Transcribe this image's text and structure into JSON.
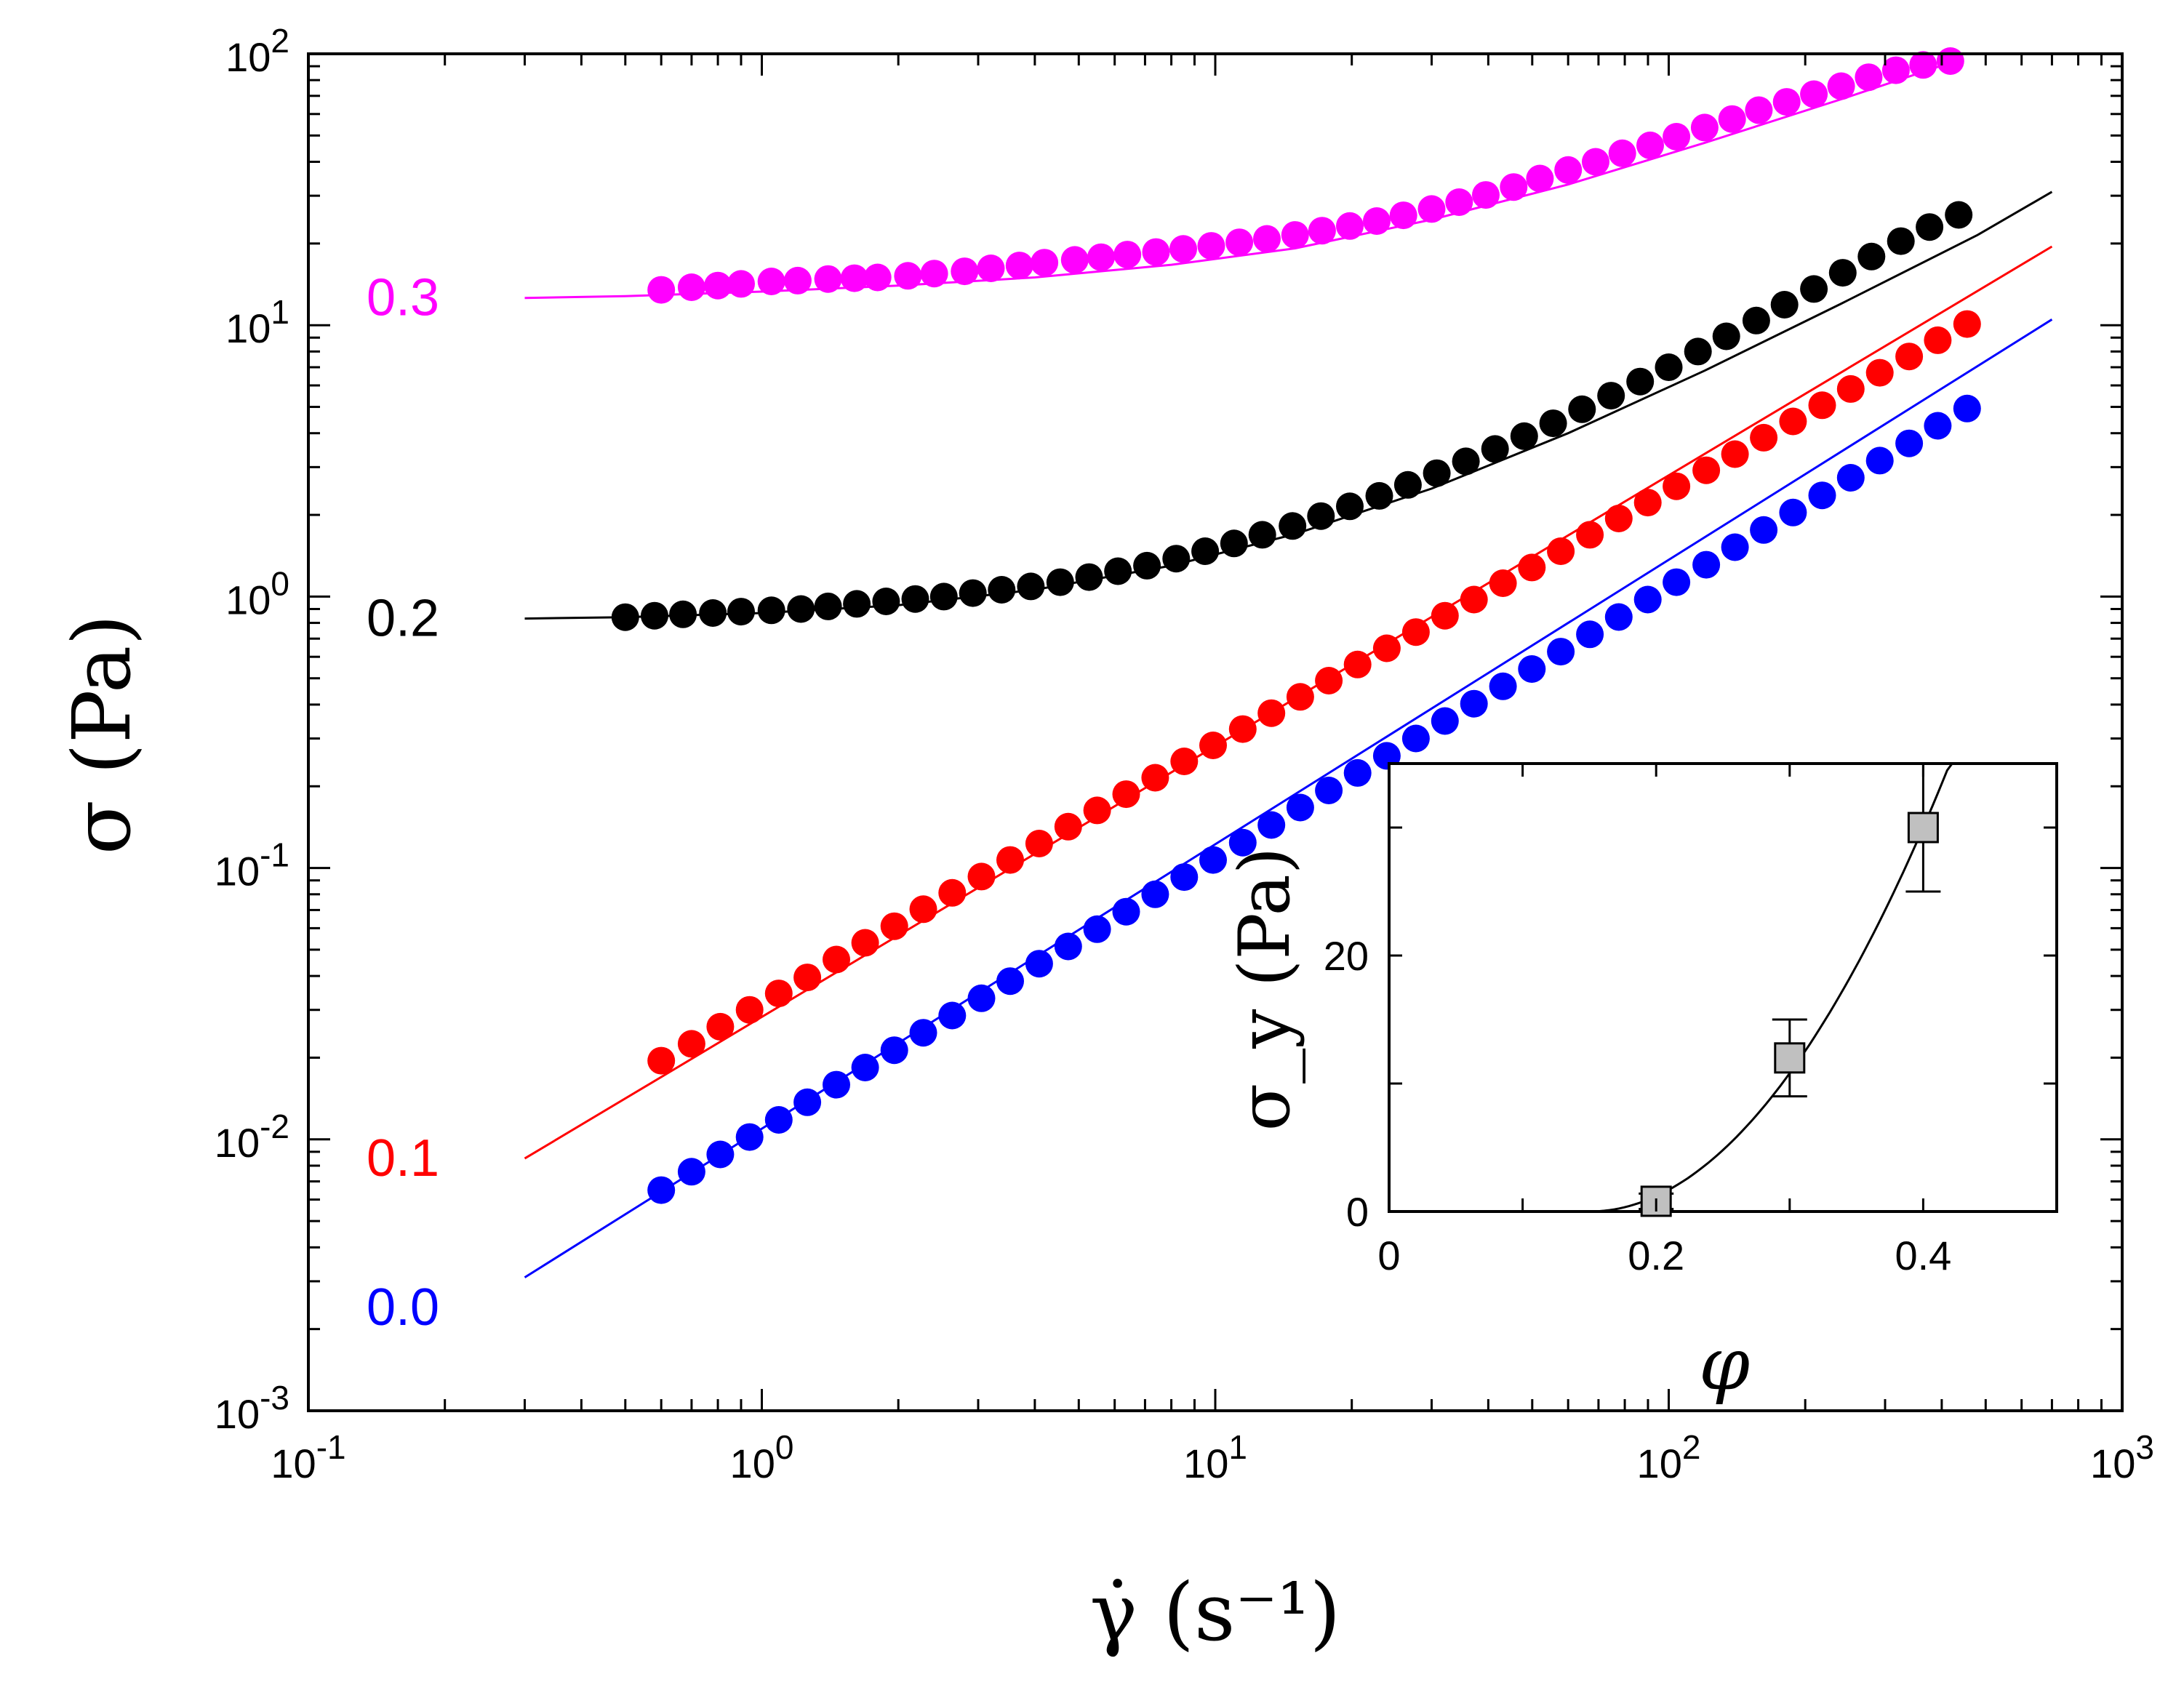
{
  "chart_data": [
    {
      "type": "scatter",
      "xlabel": "γ̇ (s⁻¹)",
      "ylabel": "σ (Pa)",
      "xscale": "log",
      "yscale": "log",
      "xlim": [
        0.1,
        1000
      ],
      "ylim": [
        0.001,
        100
      ],
      "x_ticks": [
        {
          "value": 0.1,
          "label": "10",
          "exp": "-1"
        },
        {
          "value": 1,
          "label": "10",
          "exp": "0"
        },
        {
          "value": 10,
          "label": "10",
          "exp": "1"
        },
        {
          "value": 100,
          "label": "10",
          "exp": "2"
        },
        {
          "value": 1000,
          "label": "10",
          "exp": "3"
        }
      ],
      "y_ticks": [
        {
          "value": 0.001,
          "label": "10",
          "exp": "-3"
        },
        {
          "value": 0.01,
          "label": "10",
          "exp": "-2"
        },
        {
          "value": 0.1,
          "label": "10",
          "exp": "-1"
        },
        {
          "value": 1,
          "label": "10",
          "exp": "0"
        },
        {
          "value": 10,
          "label": "10",
          "exp": "1"
        },
        {
          "value": 100,
          "label": "10",
          "exp": "2"
        }
      ],
      "series": [
        {
          "name": "0.3",
          "color": "#ff00ff",
          "data_x": [
            0.6,
            0.7,
            0.8,
            0.9,
            1.05,
            1.2,
            1.4,
            1.6,
            1.8,
            2.1,
            2.4,
            2.8,
            3.2,
            3.7,
            4.2,
            4.9,
            5.6,
            6.4,
            7.4,
            8.5,
            9.8,
            11.3,
            13,
            15,
            17.2,
            19.8,
            22.7,
            26,
            30,
            34.5,
            39.5,
            45.5,
            52,
            60,
            69,
            79,
            91,
            104,
            120,
            138,
            158,
            182,
            209,
            240,
            276,
            317,
            364,
            418
          ],
          "data_y": [
            13.5,
            13.8,
            14.0,
            14.2,
            14.5,
            14.6,
            14.8,
            14.9,
            15.0,
            15.2,
            15.5,
            15.8,
            16.2,
            16.6,
            17.0,
            17.4,
            17.8,
            18.2,
            18.6,
            19.1,
            19.6,
            20.2,
            20.8,
            21.5,
            22.3,
            23.2,
            24.2,
            25.4,
            26.8,
            28.4,
            30.2,
            32.3,
            34.7,
            37.3,
            40.0,
            43.0,
            46.0,
            49.5,
            53.5,
            57.5,
            62.0,
            66.5,
            71.0,
            76.0,
            82.0,
            87.0,
            91.0,
            94.0
          ],
          "fit_x": [
            0.3,
            0.5,
            1,
            2,
            4,
            8,
            15,
            30,
            60,
            120,
            240,
            420
          ],
          "fit_y": [
            12.6,
            12.8,
            13.3,
            14.0,
            15.0,
            16.7,
            19.2,
            24.5,
            33.0,
            47.0,
            68.0,
            93.0
          ]
        },
        {
          "name": "0.2",
          "color": "#000000",
          "data_x": [
            0.5,
            0.58,
            0.67,
            0.78,
            0.9,
            1.05,
            1.22,
            1.4,
            1.62,
            1.88,
            2.18,
            2.52,
            2.92,
            3.38,
            3.92,
            4.55,
            5.27,
            6.1,
            7.07,
            8.2,
            9.5,
            11,
            12.7,
            14.8,
            17.1,
            19.8,
            23,
            26.6,
            30.8,
            35.7,
            41.4,
            48,
            55.6,
            64.4,
            74.6,
            86.5,
            100,
            116,
            134,
            156,
            180,
            209,
            242,
            280,
            325,
            376,
            436
          ],
          "data_y": [
            0.84,
            0.85,
            0.86,
            0.87,
            0.88,
            0.89,
            0.9,
            0.92,
            0.94,
            0.96,
            0.98,
            1.0,
            1.03,
            1.06,
            1.09,
            1.13,
            1.18,
            1.24,
            1.3,
            1.38,
            1.47,
            1.57,
            1.69,
            1.82,
            1.98,
            2.15,
            2.35,
            2.58,
            2.85,
            3.15,
            3.5,
            3.9,
            4.35,
            4.9,
            5.5,
            6.2,
            7.0,
            8.0,
            9.1,
            10.4,
            11.9,
            13.6,
            15.6,
            17.9,
            20.4,
            23.0,
            25.5
          ],
          "fit_x": [
            0.3,
            0.5,
            1,
            2,
            4,
            8,
            15,
            30,
            60,
            120,
            240,
            480,
            700
          ],
          "fit_y": [
            0.83,
            0.84,
            0.87,
            0.93,
            1.06,
            1.3,
            1.7,
            2.5,
            4.0,
            6.8,
            12.0,
            21.5,
            31.0
          ]
        },
        {
          "name": "0.1",
          "color": "#ff0000",
          "data_x": [
            0.6,
            0.7,
            0.81,
            0.94,
            1.09,
            1.26,
            1.46,
            1.69,
            1.96,
            2.27,
            2.63,
            3.05,
            3.53,
            4.09,
            4.74,
            5.49,
            6.36,
            7.37,
            8.54,
            9.89,
            11.5,
            13.3,
            15.4,
            17.8,
            20.6,
            23.9,
            27.7,
            32.1,
            37.2,
            43.1,
            49.9,
            57.8,
            67,
            77.6,
            89.9,
            104,
            121,
            140,
            162,
            188,
            218,
            252,
            292,
            339,
            392,
            455
          ],
          "data_y": [
            0.0195,
            0.0225,
            0.026,
            0.03,
            0.0345,
            0.0395,
            0.046,
            0.053,
            0.061,
            0.0705,
            0.081,
            0.093,
            0.107,
            0.123,
            0.142,
            0.163,
            0.187,
            0.215,
            0.247,
            0.283,
            0.325,
            0.372,
            0.427,
            0.49,
            0.562,
            0.645,
            0.74,
            0.85,
            0.975,
            1.12,
            1.28,
            1.47,
            1.69,
            1.94,
            2.22,
            2.55,
            2.92,
            3.35,
            3.85,
            4.42,
            5.07,
            5.82,
            6.68,
            7.67,
            8.8,
            10.1
          ],
          "fit_x": [
            0.3,
            700
          ],
          "fit_y": [
            0.0085,
            19.5
          ]
        },
        {
          "name": "0.0",
          "color": "#0000ff",
          "data_x": [
            0.6,
            0.7,
            0.81,
            0.94,
            1.09,
            1.26,
            1.46,
            1.69,
            1.96,
            2.27,
            2.63,
            3.05,
            3.53,
            4.09,
            4.74,
            5.49,
            6.36,
            7.37,
            8.54,
            9.89,
            11.5,
            13.3,
            15.4,
            17.8,
            20.6,
            23.9,
            27.7,
            32.1,
            37.2,
            43.1,
            49.9,
            57.8,
            67,
            77.6,
            89.9,
            104,
            121,
            140,
            162,
            188,
            218,
            252,
            292,
            339,
            392,
            455
          ],
          "data_y": [
            0.0065,
            0.0076,
            0.0088,
            0.0102,
            0.0118,
            0.0137,
            0.0159,
            0.0184,
            0.0213,
            0.0247,
            0.0286,
            0.0331,
            0.0383,
            0.0444,
            0.0514,
            0.0595,
            0.069,
            0.08,
            0.0926,
            0.107,
            0.124,
            0.144,
            0.167,
            0.193,
            0.224,
            0.259,
            0.3,
            0.348,
            0.403,
            0.467,
            0.541,
            0.627,
            0.726,
            0.841,
            0.975,
            1.13,
            1.31,
            1.52,
            1.76,
            2.04,
            2.36,
            2.74,
            3.17,
            3.67,
            4.26,
            4.93
          ],
          "fit_x": [
            0.3,
            700
          ],
          "fit_y": [
            0.0031,
            10.5
          ]
        }
      ]
    },
    {
      "type": "scatter",
      "inset": true,
      "xlabel": "φ",
      "ylabel": "σ_y (Pa)",
      "xlim": [
        0,
        0.5
      ],
      "ylim": [
        0,
        35
      ],
      "x_ticks": [
        {
          "value": 0,
          "label": "0"
        },
        {
          "value": 0.2,
          "label": "0.2"
        },
        {
          "value": 0.4,
          "label": "0.4"
        }
      ],
      "y_ticks": [
        {
          "value": 0,
          "label": "0"
        },
        {
          "value": 20,
          "label": "20"
        }
      ],
      "marker_color": "#c0c0c0",
      "points": [
        {
          "x": 0.2,
          "y": 0.8,
          "err": 0.6
        },
        {
          "x": 0.3,
          "y": 12.0,
          "err": 3.0
        },
        {
          "x": 0.4,
          "y": 30.0,
          "err": 5.0
        }
      ],
      "fit": {
        "phi_c": 0.15,
        "x_end": 0.44
      }
    }
  ]
}
